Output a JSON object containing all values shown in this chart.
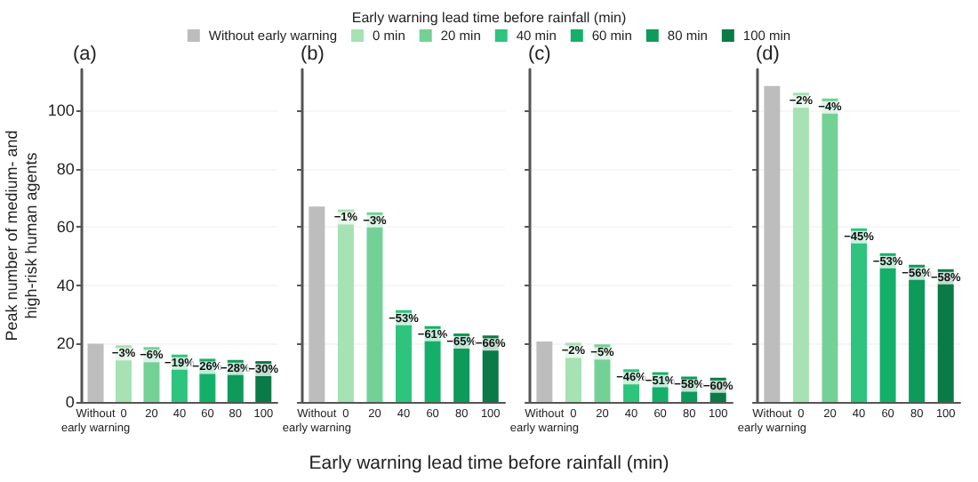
{
  "chart_data": [
    {
      "type": "bar",
      "title": "(a)",
      "ylabel": "Peak number of medium- and\nhigh-risk human agents",
      "xlabel": "Early warning lead time before rainfall (min)",
      "legend_title": "Early warning lead time before rainfall (min)",
      "legend": "top",
      "grid": "y",
      "ylim": [
        0,
        114
      ],
      "yticks": [
        0,
        20,
        40,
        60,
        80,
        100
      ],
      "categories": [
        "Without\nearly warning",
        "0",
        "20",
        "40",
        "60",
        "80",
        "100"
      ],
      "series": [
        {
          "name": "Without early warning",
          "color": "#bdbdbd",
          "values": [
            20,
            null,
            null,
            null,
            null,
            null,
            null
          ]
        },
        {
          "name": "0 min",
          "color": "#a6e2b4",
          "values": [
            null,
            19.4,
            null,
            null,
            null,
            null,
            null
          ]
        },
        {
          "name": "20 min",
          "color": "#74d196",
          "values": [
            null,
            null,
            18.8,
            null,
            null,
            null,
            null
          ]
        },
        {
          "name": "40 min",
          "color": "#2ec47e",
          "values": [
            null,
            null,
            null,
            16.2,
            null,
            null,
            null
          ]
        },
        {
          "name": "60 min",
          "color": "#14b06a",
          "values": [
            null,
            null,
            null,
            null,
            14.8,
            null,
            null
          ]
        },
        {
          "name": "80 min",
          "color": "#0d9a5a",
          "values": [
            null,
            null,
            null,
            null,
            null,
            14.4,
            null
          ]
        },
        {
          "name": "100 min",
          "color": "#0a7a46",
          "values": [
            null,
            null,
            null,
            null,
            null,
            null,
            14
          ]
        }
      ],
      "annotations": [
        {
          "text": "−3%",
          "x": "0",
          "y": 19.4
        },
        {
          "text": "−6%",
          "x": "20",
          "y": 18.8
        },
        {
          "text": "−19%",
          "x": "40",
          "y": 16.2
        },
        {
          "text": "−26%",
          "x": "60",
          "y": 14.8
        },
        {
          "text": "−28%",
          "x": "80",
          "y": 14.4
        },
        {
          "text": "−30%",
          "x": "100",
          "y": 14
        }
      ]
    },
    {
      "type": "bar",
      "title": "(b)",
      "grid": "y",
      "tick_labels": "x",
      "ylim": [
        0,
        114
      ],
      "yticks": [
        0,
        20,
        40,
        60,
        80,
        100
      ],
      "categories": [
        "Without\nearly warning",
        "0",
        "20",
        "40",
        "60",
        "80",
        "100"
      ],
      "series": [
        {
          "color": "#bdbdbd",
          "values": [
            67,
            null,
            null,
            null,
            null,
            null,
            null
          ]
        },
        {
          "color": "#a6e2b4",
          "values": [
            null,
            66,
            null,
            null,
            null,
            null,
            null
          ]
        },
        {
          "color": "#74d196",
          "values": [
            null,
            null,
            65,
            null,
            null,
            null,
            null
          ]
        },
        {
          "color": "#2ec47e",
          "values": [
            null,
            null,
            null,
            31.5,
            null,
            null,
            null
          ]
        },
        {
          "color": "#14b06a",
          "values": [
            null,
            null,
            null,
            null,
            26,
            null,
            null
          ]
        },
        {
          "color": "#0d9a5a",
          "values": [
            null,
            null,
            null,
            null,
            null,
            23.5,
            null
          ]
        },
        {
          "color": "#0a7a46",
          "values": [
            null,
            null,
            null,
            null,
            null,
            null,
            22.8
          ]
        }
      ],
      "annotations": [
        {
          "text": "−1%",
          "x": "0",
          "y": 66
        },
        {
          "text": "−3%",
          "x": "20",
          "y": 65
        },
        {
          "text": "−53%",
          "x": "40",
          "y": 31.5
        },
        {
          "text": "−61%",
          "x": "60",
          "y": 26
        },
        {
          "text": "−65%",
          "x": "80",
          "y": 23.5
        },
        {
          "text": "−66%",
          "x": "100",
          "y": 22.8
        }
      ]
    },
    {
      "type": "bar",
      "title": "(c)",
      "grid": "y",
      "tick_labels": "x",
      "ylim": [
        0,
        114
      ],
      "yticks": [
        0,
        20,
        40,
        60,
        80,
        100
      ],
      "categories": [
        "Without\nearly warning",
        "0",
        "20",
        "40",
        "60",
        "80",
        "100"
      ],
      "series": [
        {
          "color": "#bdbdbd",
          "values": [
            20.7,
            null,
            null,
            null,
            null,
            null,
            null
          ]
        },
        {
          "color": "#a6e2b4",
          "values": [
            null,
            20.3,
            null,
            null,
            null,
            null,
            null
          ]
        },
        {
          "color": "#74d196",
          "values": [
            null,
            null,
            19.7,
            null,
            null,
            null,
            null
          ]
        },
        {
          "color": "#2ec47e",
          "values": [
            null,
            null,
            null,
            11.2,
            null,
            null,
            null
          ]
        },
        {
          "color": "#14b06a",
          "values": [
            null,
            null,
            null,
            null,
            10.2,
            null,
            null
          ]
        },
        {
          "color": "#0d9a5a",
          "values": [
            null,
            null,
            null,
            null,
            null,
            8.7,
            null
          ]
        },
        {
          "color": "#0a7a46",
          "values": [
            null,
            null,
            null,
            null,
            null,
            null,
            8.3
          ]
        }
      ],
      "annotations": [
        {
          "text": "−2%",
          "x": "0",
          "y": 20.3
        },
        {
          "text": "−5%",
          "x": "20",
          "y": 19.7
        },
        {
          "text": "−46%",
          "x": "40",
          "y": 11.2
        },
        {
          "text": "−51%",
          "x": "60",
          "y": 10.2
        },
        {
          "text": "−58%",
          "x": "80",
          "y": 8.7
        },
        {
          "text": "−60%",
          "x": "100",
          "y": 8.3
        }
      ]
    },
    {
      "type": "bar",
      "title": "(d)",
      "grid": "y",
      "tick_labels": "x",
      "ylim": [
        0,
        114
      ],
      "yticks": [
        0,
        20,
        40,
        60,
        80,
        100
      ],
      "categories": [
        "Without\nearly warning",
        "0",
        "20",
        "40",
        "60",
        "80",
        "100"
      ],
      "series": [
        {
          "color": "#bdbdbd",
          "values": [
            108.3,
            null,
            null,
            null,
            null,
            null,
            null
          ]
        },
        {
          "color": "#a6e2b4",
          "values": [
            null,
            106,
            null,
            null,
            null,
            null,
            null
          ]
        },
        {
          "color": "#74d196",
          "values": [
            null,
            null,
            104,
            null,
            null,
            null,
            null
          ]
        },
        {
          "color": "#2ec47e",
          "values": [
            null,
            null,
            null,
            59.5,
            null,
            null,
            null
          ]
        },
        {
          "color": "#14b06a",
          "values": [
            null,
            null,
            null,
            null,
            51,
            null,
            null
          ]
        },
        {
          "color": "#0d9a5a",
          "values": [
            null,
            null,
            null,
            null,
            null,
            47,
            null
          ]
        },
        {
          "color": "#0a7a46",
          "values": [
            null,
            null,
            null,
            null,
            null,
            null,
            45.5
          ]
        }
      ],
      "annotations": [
        {
          "text": "−2%",
          "x": "0",
          "y": 106
        },
        {
          "text": "−4%",
          "x": "20",
          "y": 104
        },
        {
          "text": "−45%",
          "x": "40",
          "y": 59.5
        },
        {
          "text": "−53%",
          "x": "60",
          "y": 51
        },
        {
          "text": "−56%",
          "x": "80",
          "y": 47
        },
        {
          "text": "−58%",
          "x": "100",
          "y": 45.5
        }
      ]
    }
  ]
}
